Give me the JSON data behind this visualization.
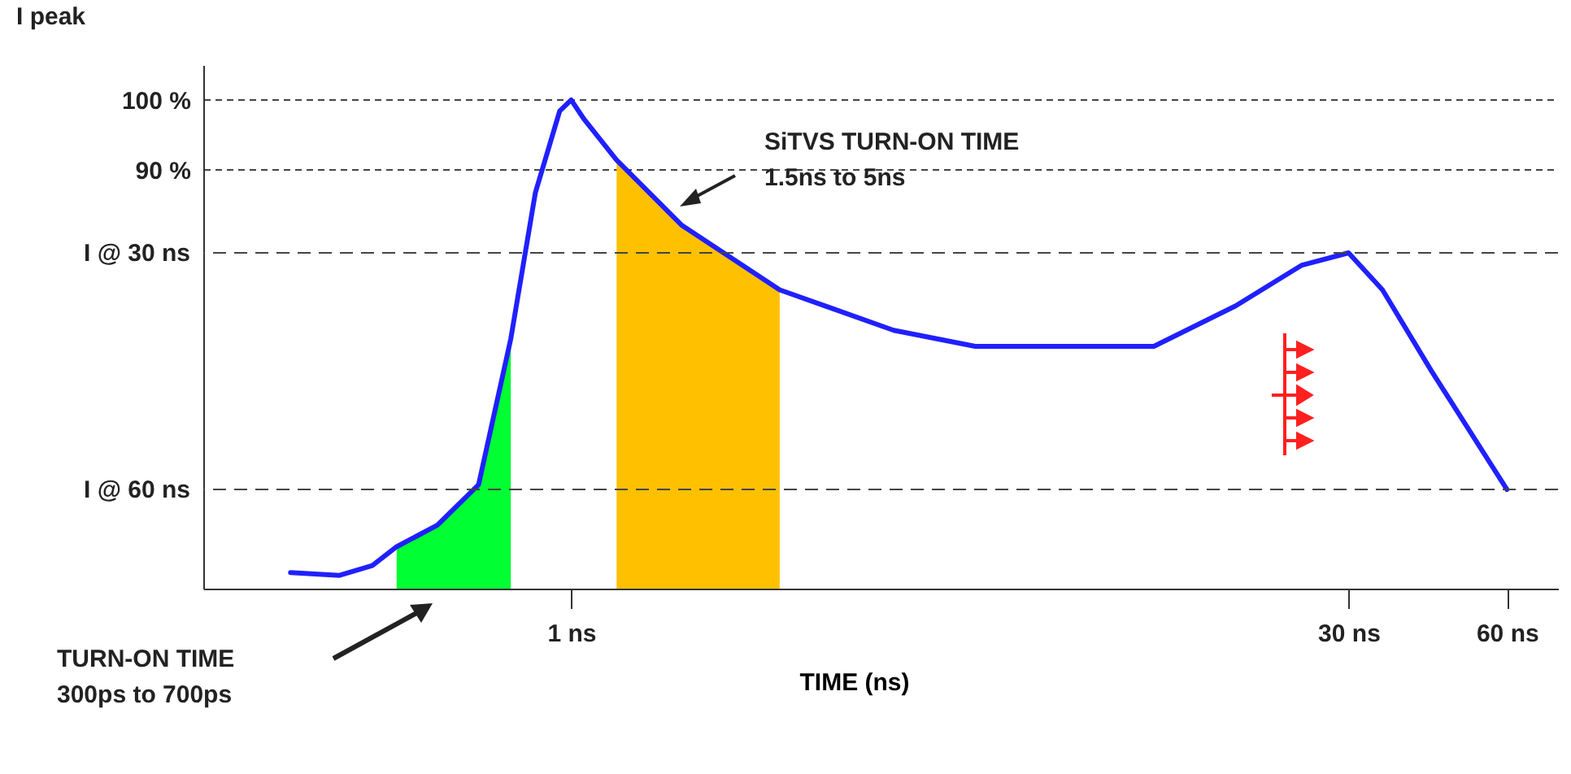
{
  "chart_data": {
    "type": "line",
    "ylabel": "I peak",
    "xlabel": "TIME (ns)",
    "log": "x",
    "xlim": [
      0.2,
      75
    ],
    "ylim": [
      30,
      105
    ],
    "xticks": [
      {
        "value": 1,
        "label": "1 ns"
      },
      {
        "value": 30,
        "label": "30 ns"
      },
      {
        "value": 60,
        "label": "60 ns"
      }
    ],
    "yticks": [
      {
        "value": 100,
        "label": "100 %"
      },
      {
        "value": 90,
        "label": "90 %"
      }
    ],
    "ref_lines": [
      {
        "axis": "y",
        "value": 78.1,
        "label": "I @ 30 ns",
        "line_style": "dashed"
      },
      {
        "axis": "y",
        "value": 44.2,
        "label": "I @ 60 ns",
        "line_style": "dashed"
      }
    ],
    "grid": "y",
    "marker": "none",
    "series": [
      {
        "type": "area",
        "color": "#00ff33",
        "x": [
          0.466,
          0.557,
          0.667,
          0.768
        ],
        "values": [
          36,
          39.1,
          44.9,
          65.8
        ]
      },
      {
        "type": "area",
        "color": "#ffc000",
        "x": [
          1.22,
          1.62,
          2.49
        ],
        "values": [
          91.4,
          82.1,
          72.8
        ]
      },
      {
        "type": "line",
        "color": "#2020ff",
        "line_style": "solid",
        "x": [
          0.293,
          0.363,
          0.419,
          0.466,
          0.557,
          0.667,
          0.768,
          0.855,
          0.951,
          1,
          1.059,
          1.22,
          1.62,
          2.49,
          4.1,
          5.86,
          8.37,
          12.8,
          18.3,
          24.4,
          30,
          34.8,
          43.1,
          60
        ],
        "values": [
          32.3,
          31.9,
          33.3,
          36,
          39.1,
          44.9,
          65.8,
          86.7,
          98.4,
          100,
          97.2,
          91.4,
          82.1,
          72.8,
          67,
          64.7,
          64.7,
          64.7,
          70.5,
          76.3,
          78.1,
          72.8,
          61.2,
          44.2
        ]
      }
    ],
    "annotations": [
      "SiTVS TURN-ON TIME\n1.5ns to 5ns",
      "TURN-ON TIME\n300ps to 700ps"
    ]
  }
}
